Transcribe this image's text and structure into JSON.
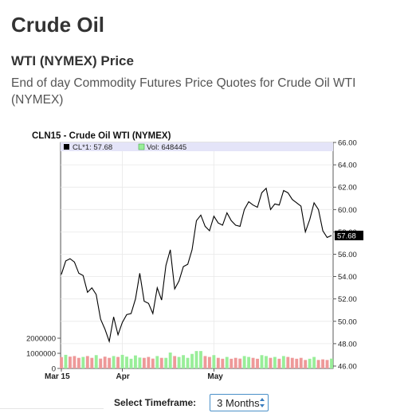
{
  "header": {
    "title": "Crude Oil",
    "subtitle": "WTI (NYMEX) Price",
    "description": "End of day Commodity Futures Price Quotes for Crude Oil WTI (NYMEX)"
  },
  "chart_data": {
    "type": "line",
    "title": "CLN15 - Crude Oil WTI (NYMEX)",
    "legend": {
      "price_label": "CL*1: 57.68",
      "volume_label": "Vol: 648445",
      "placement": "top-left"
    },
    "price_axis": {
      "ticks": [
        "66.00",
        "64.00",
        "62.00",
        "60.00",
        "58.00",
        "56.00",
        "54.00",
        "52.00",
        "50.00",
        "48.00",
        "46.00"
      ],
      "ylim": [
        46,
        66
      ],
      "side": "right",
      "last_value_label": "57.68"
    },
    "volume_axis": {
      "ticks": [
        "2000000",
        "1000000",
        "0"
      ],
      "side": "left"
    },
    "x_ticks": [
      "Mar 15",
      "Apr",
      "May"
    ],
    "x_tick_positions_trading_day": [
      0,
      14,
      35
    ],
    "colors": {
      "price_line": "#000000",
      "volume_up": "#99ee99",
      "volume_down": "#ee9999",
      "legend_bg": "#e4e4f8",
      "grid": "#e8e8e8"
    },
    "series": [
      {
        "values": [
          54.2,
          55.4,
          55.6,
          55.3,
          54.3,
          54.1,
          52.6,
          53.0,
          52.4,
          50.2,
          49.3,
          48.2,
          50.4,
          48.8,
          49.9,
          50.6,
          50.7,
          52.0,
          54.3,
          51.8,
          51.6,
          50.7,
          53.0,
          51.9,
          55.0,
          56.4,
          52.9,
          53.6,
          54.9,
          55.1,
          56.4,
          59.0,
          59.5,
          58.5,
          58.1,
          59.4,
          58.8,
          58.6,
          59.7,
          59.0,
          58.6,
          58.5,
          60.0,
          60.7,
          60.4,
          60.2,
          61.5,
          61.9,
          60.0,
          60.5,
          60.4,
          61.7,
          61.5,
          60.9,
          60.6,
          60.3,
          58.0,
          59.1,
          60.6,
          60.0,
          58.1,
          57.5,
          57.68
        ],
        "volume_direction": [
          "d",
          "u",
          "d",
          "d",
          "d",
          "u",
          "d",
          "d",
          "u",
          "d",
          "d",
          "d",
          "u",
          "d",
          "u",
          "u",
          "u",
          "u",
          "u",
          "d",
          "d",
          "d",
          "u",
          "d",
          "u",
          "u",
          "d",
          "u",
          "u",
          "u",
          "u",
          "u",
          "u",
          "d",
          "d",
          "u",
          "d",
          "d",
          "u",
          "d",
          "d",
          "d",
          "u",
          "u",
          "d",
          "d",
          "u",
          "u",
          "d",
          "u",
          "d",
          "u",
          "d",
          "d",
          "d",
          "d",
          "d",
          "u",
          "u",
          "d",
          "d",
          "d",
          "u"
        ],
        "volume_values": [
          750000,
          900000,
          780000,
          820000,
          700000,
          760000,
          820000,
          700000,
          880000,
          650000,
          780000,
          700000,
          820000,
          760000,
          900000,
          780000,
          640000,
          860000,
          720000,
          700000,
          760000,
          650000,
          820000,
          700000,
          700000,
          1050000,
          820000,
          760000,
          880000,
          700000,
          960000,
          1150000,
          1150000,
          820000,
          760000,
          880000,
          700000,
          640000,
          760000,
          640000,
          700000,
          650000,
          820000,
          760000,
          700000,
          640000,
          880000,
          820000,
          700000,
          760000,
          640000,
          820000,
          760000,
          700000,
          640000,
          700000,
          560000,
          640000,
          760000,
          560000,
          600000,
          560000,
          650000
        ]
      }
    ]
  },
  "controls": {
    "timeframe_label": "Select Timeframe:",
    "timeframe_value": "3 Months"
  }
}
